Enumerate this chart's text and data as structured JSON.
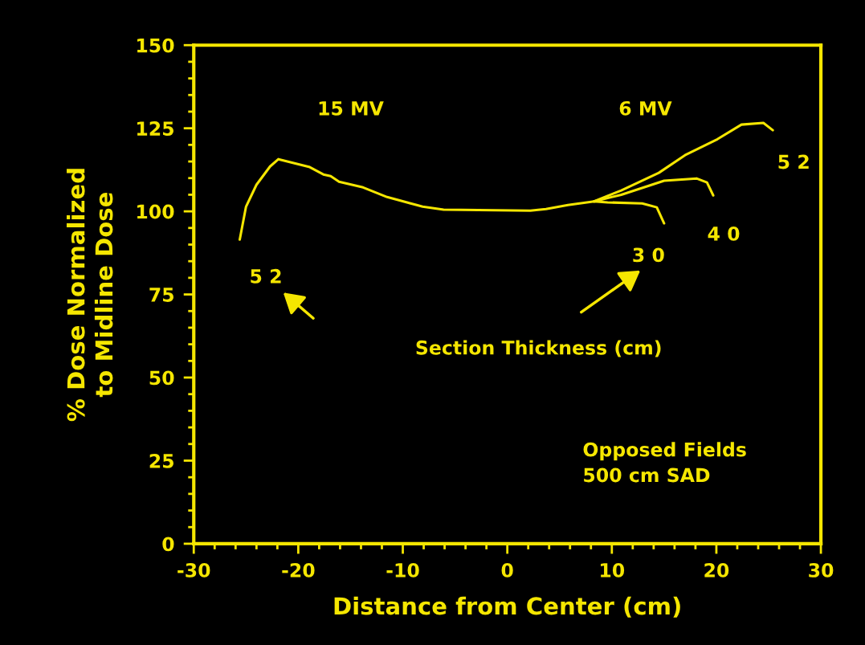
{
  "chart_data": {
    "type": "line",
    "xlabel": "Distance from Center (cm)",
    "ylabel": "% Dose Normalized\nto Midline Dose",
    "xlim": [
      -30,
      30
    ],
    "xticks": [
      -30,
      -20,
      -10,
      0,
      10,
      20,
      30
    ],
    "ylim": [
      0,
      150
    ],
    "yticks": [
      0,
      25,
      50,
      75,
      100,
      125,
      150
    ],
    "grid": false,
    "legend": false,
    "marker": "none",
    "line_style": "solid",
    "series": [
      {
        "color": "#f5e600",
        "x": [
          -25.6,
          -25.0,
          -24.0,
          -22.7,
          -21.9,
          -18.9,
          -17.6,
          -16.9,
          -16.1,
          -13.8,
          -11.5,
          -8.1,
          -6.1,
          2.2,
          3.7,
          5.8,
          8.3,
          9.6,
          12.9,
          14.3,
          15.0
        ],
        "values": [
          91.5,
          101.4,
          108,
          113.5,
          115.7,
          113.3,
          111.1,
          110.6,
          108.9,
          107.2,
          104.3,
          101.4,
          100.5,
          100.2,
          100.7,
          101.9,
          103,
          102.7,
          102.4,
          101.2,
          96.4
        ]
      },
      {
        "color": "#f5e600",
        "x": [
          8.3,
          10.9,
          15.0,
          18.1,
          19.1,
          19.7
        ],
        "values": [
          103,
          105,
          109.2,
          109.9,
          108.7,
          104.8
        ]
      },
      {
        "color": "#f5e600",
        "x": [
          8.3,
          10.9,
          14.5,
          17.0,
          20.1,
          22.4,
          24.5,
          25.4
        ],
        "values": [
          103,
          106.3,
          111.6,
          116.9,
          121.7,
          126.1,
          126.6,
          124.4
        ]
      }
    ],
    "annotations": [
      "15 MV",
      "6 MV",
      {
        "text": "5 2",
        "x": -25.6,
        "y": 91.5
      },
      {
        "text": "3 0",
        "x": 15.0,
        "y": 96.4
      },
      {
        "text": "4 0",
        "x": 19.7,
        "y": 104.8
      },
      {
        "text": "5 2",
        "x": 25.4,
        "y": 124.4
      },
      "Section Thickness (cm)",
      "Opposed Fields\n500 cm SAD"
    ]
  }
}
